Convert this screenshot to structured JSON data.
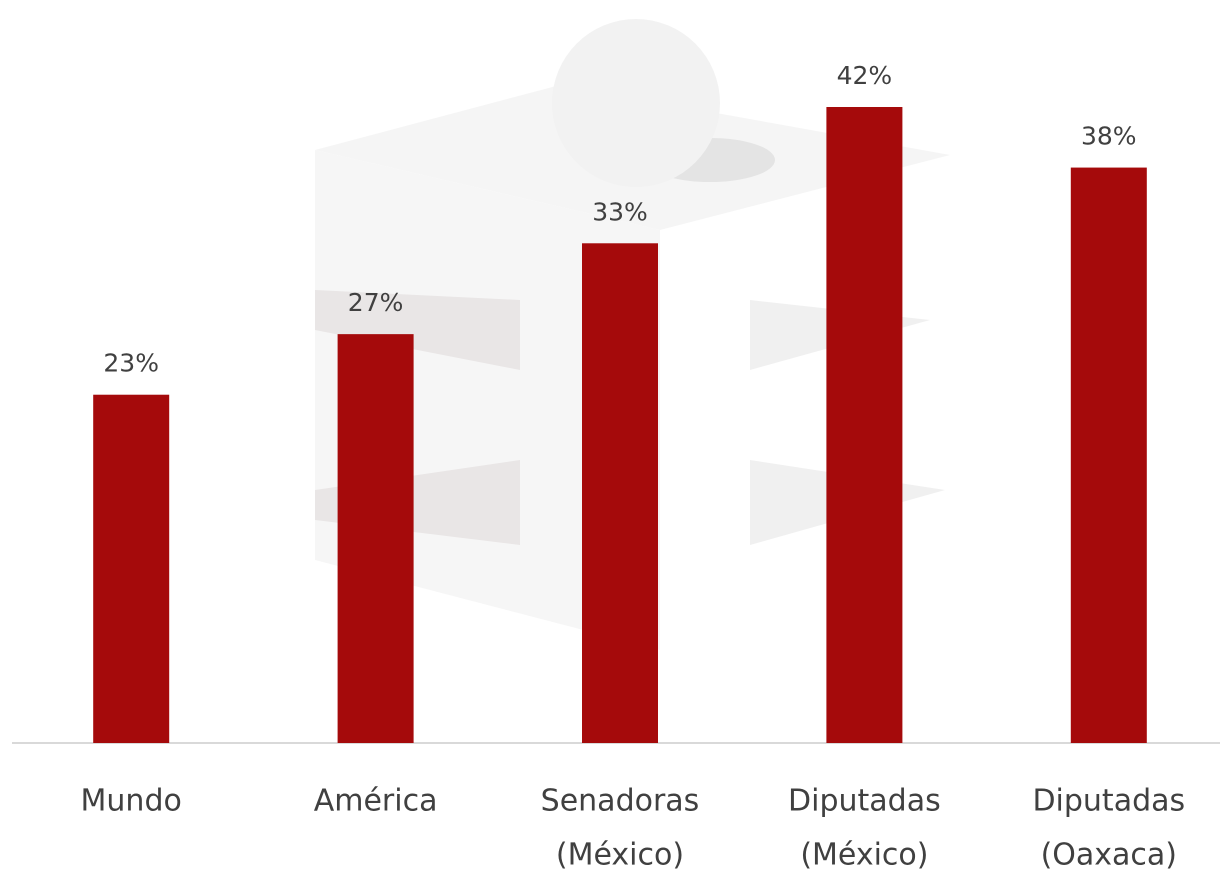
{
  "chart_data": {
    "type": "bar",
    "categories": [
      [
        "Mundo"
      ],
      [
        "América"
      ],
      [
        "Senadoras",
        "(México)"
      ],
      [
        "Diputadas",
        "(México)"
      ],
      [
        "Diputadas",
        "(Oaxaca)"
      ]
    ],
    "values": [
      23,
      27,
      33,
      42,
      38
    ],
    "value_labels": [
      "23%",
      "27%",
      "33%",
      "42%",
      "38%"
    ],
    "color": "#a50a0b"
  }
}
